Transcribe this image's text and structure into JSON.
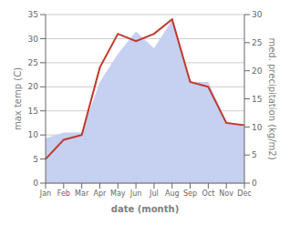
{
  "chart_data": {
    "type": "line",
    "categories": [
      "Jan",
      "Feb",
      "Mar",
      "Apr",
      "May",
      "Jun",
      "Jul",
      "Aug",
      "Sep",
      "Oct",
      "Nov",
      "Dec"
    ],
    "series": [
      {
        "type": "area",
        "axis": "y2",
        "color": "#c6d0f0",
        "values": [
          8,
          9,
          9,
          18,
          23,
          27,
          24,
          29,
          18,
          18,
          11,
          10
        ]
      },
      {
        "type": "line",
        "color": "#c0392b",
        "values": [
          5,
          9,
          10,
          24,
          31,
          29.5,
          31,
          34,
          21,
          20,
          12.5,
          12
        ]
      }
    ],
    "xlabel": "date (month)",
    "ylabel": "max temp (C)",
    "y2label": "med. precipitation (kg/m2)",
    "ylim": [
      0,
      35
    ],
    "yticks": [
      0,
      5,
      10,
      15,
      20,
      25,
      30,
      35
    ],
    "y2lim": [
      0,
      30
    ],
    "y2ticks": [
      0,
      5,
      10,
      15,
      20,
      25,
      30
    ],
    "grid": true
  }
}
